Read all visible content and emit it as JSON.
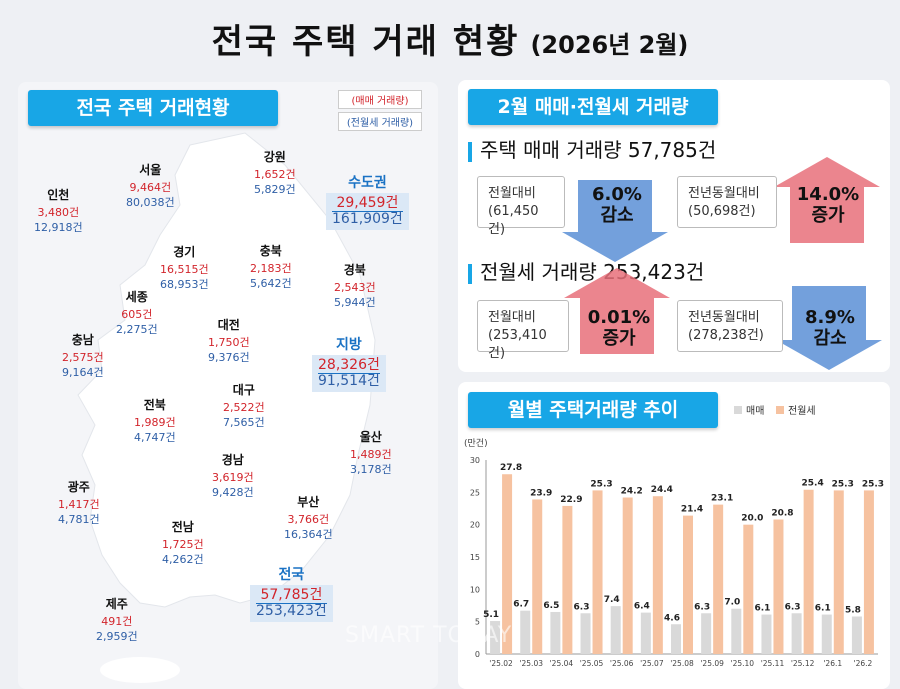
{
  "title": {
    "main": "전국 주택 거래 현황",
    "sub": "(2026년 2월)"
  },
  "left": {
    "banner": "전국 주택 거래현황",
    "legend": {
      "sale": "(매매 거래량)",
      "jeonse": "(전월세 거래량)"
    },
    "regions": [
      {
        "id": "incheon",
        "name": "인천",
        "sale": "3,480건",
        "jeonse": "12,918건"
      },
      {
        "id": "seoul",
        "name": "서울",
        "sale": "9,464건",
        "jeonse": "80,038건"
      },
      {
        "id": "gangwon",
        "name": "강원",
        "sale": "1,652건",
        "jeonse": "5,829건"
      },
      {
        "id": "gyeonggi",
        "name": "경기",
        "sale": "16,515건",
        "jeonse": "68,953건"
      },
      {
        "id": "chungbuk",
        "name": "충북",
        "sale": "2,183건",
        "jeonse": "5,642건"
      },
      {
        "id": "gyeongbuk",
        "name": "경북",
        "sale": "2,543건",
        "jeonse": "5,944건"
      },
      {
        "id": "sejong",
        "name": "세종",
        "sale": "605건",
        "jeonse": "2,275건"
      },
      {
        "id": "daejeon",
        "name": "대전",
        "sale": "1,750건",
        "jeonse": "9,376건"
      },
      {
        "id": "chungnam",
        "name": "충남",
        "sale": "2,575건",
        "jeonse": "9,164건"
      },
      {
        "id": "daegu",
        "name": "대구",
        "sale": "2,522건",
        "jeonse": "7,565건"
      },
      {
        "id": "jeonbuk",
        "name": "전북",
        "sale": "1,989건",
        "jeonse": "4,747건"
      },
      {
        "id": "ulsan",
        "name": "울산",
        "sale": "1,489건",
        "jeonse": "3,178건"
      },
      {
        "id": "gyeongnam",
        "name": "경남",
        "sale": "3,619건",
        "jeonse": "9,428건"
      },
      {
        "id": "gwangju",
        "name": "광주",
        "sale": "1,417건",
        "jeonse": "4,781건"
      },
      {
        "id": "busan",
        "name": "부산",
        "sale": "3,766건",
        "jeonse": "16,364건"
      },
      {
        "id": "jeonnam",
        "name": "전남",
        "sale": "1,725건",
        "jeonse": "4,262건"
      },
      {
        "id": "jeju",
        "name": "제주",
        "sale": "491건",
        "jeonse": "2,959건"
      }
    ],
    "capital": {
      "name": "수도권",
      "sale": "29,459건",
      "jeonse": "161,909건"
    },
    "local": {
      "name": "지방",
      "sale": "28,326건",
      "jeonse": "91,514건"
    },
    "nation": {
      "name": "전국",
      "sale": "57,785건",
      "jeonse": "253,423건"
    }
  },
  "summary": {
    "banner": "2월 매매·전월세 거래량",
    "sale": {
      "title": "주택 매매 거래량 57,785건",
      "mom_label": "전월대비",
      "mom_base": "(61,450건)",
      "mom_pct": "6.0%",
      "mom_dir": "감소",
      "yoy_label": "전년동월대비",
      "yoy_base": "(50,698건)",
      "yoy_pct": "14.0%",
      "yoy_dir": "증가"
    },
    "jeonse": {
      "title": "전월세 거래량 253,423건",
      "mom_label": "전월대비",
      "mom_base": "(253,410건)",
      "mom_pct": "0.01%",
      "mom_dir": "증가",
      "yoy_label": "전년동월대비",
      "yoy_base": "(278,238건)",
      "yoy_pct": "8.9%",
      "yoy_dir": "감소"
    },
    "colors": {
      "up": "#e8707a",
      "down": "#5b8fd6"
    }
  },
  "chart_banner": "월별 주택거래량 추이",
  "chart_data": {
    "type": "bar",
    "ylabel": "(만건)",
    "ylim": [
      0,
      30
    ],
    "yticks": [
      0,
      5,
      10,
      15,
      20,
      25,
      30
    ],
    "categories": [
      "'25.02",
      "'25.03",
      "'25.04",
      "'25.05",
      "'25.06",
      "'25.07",
      "'25.08",
      "'25.09",
      "'25.10",
      "'25.11",
      "'25.12",
      "'26.1",
      "'26.2"
    ],
    "series": [
      {
        "name": "매매",
        "color": "#d9d9d9",
        "values": [
          5.1,
          6.7,
          6.5,
          6.3,
          7.4,
          6.4,
          4.6,
          6.3,
          7.0,
          6.1,
          6.3,
          6.1,
          5.8
        ]
      },
      {
        "name": "전월세",
        "color": "#f6c2a0",
        "values": [
          27.8,
          23.9,
          22.9,
          25.3,
          24.2,
          24.4,
          21.4,
          23.1,
          20.0,
          20.8,
          25.4,
          25.3,
          25.3
        ]
      }
    ],
    "legend": "top-right",
    "grid": false
  },
  "watermark": "SMART TODAY"
}
